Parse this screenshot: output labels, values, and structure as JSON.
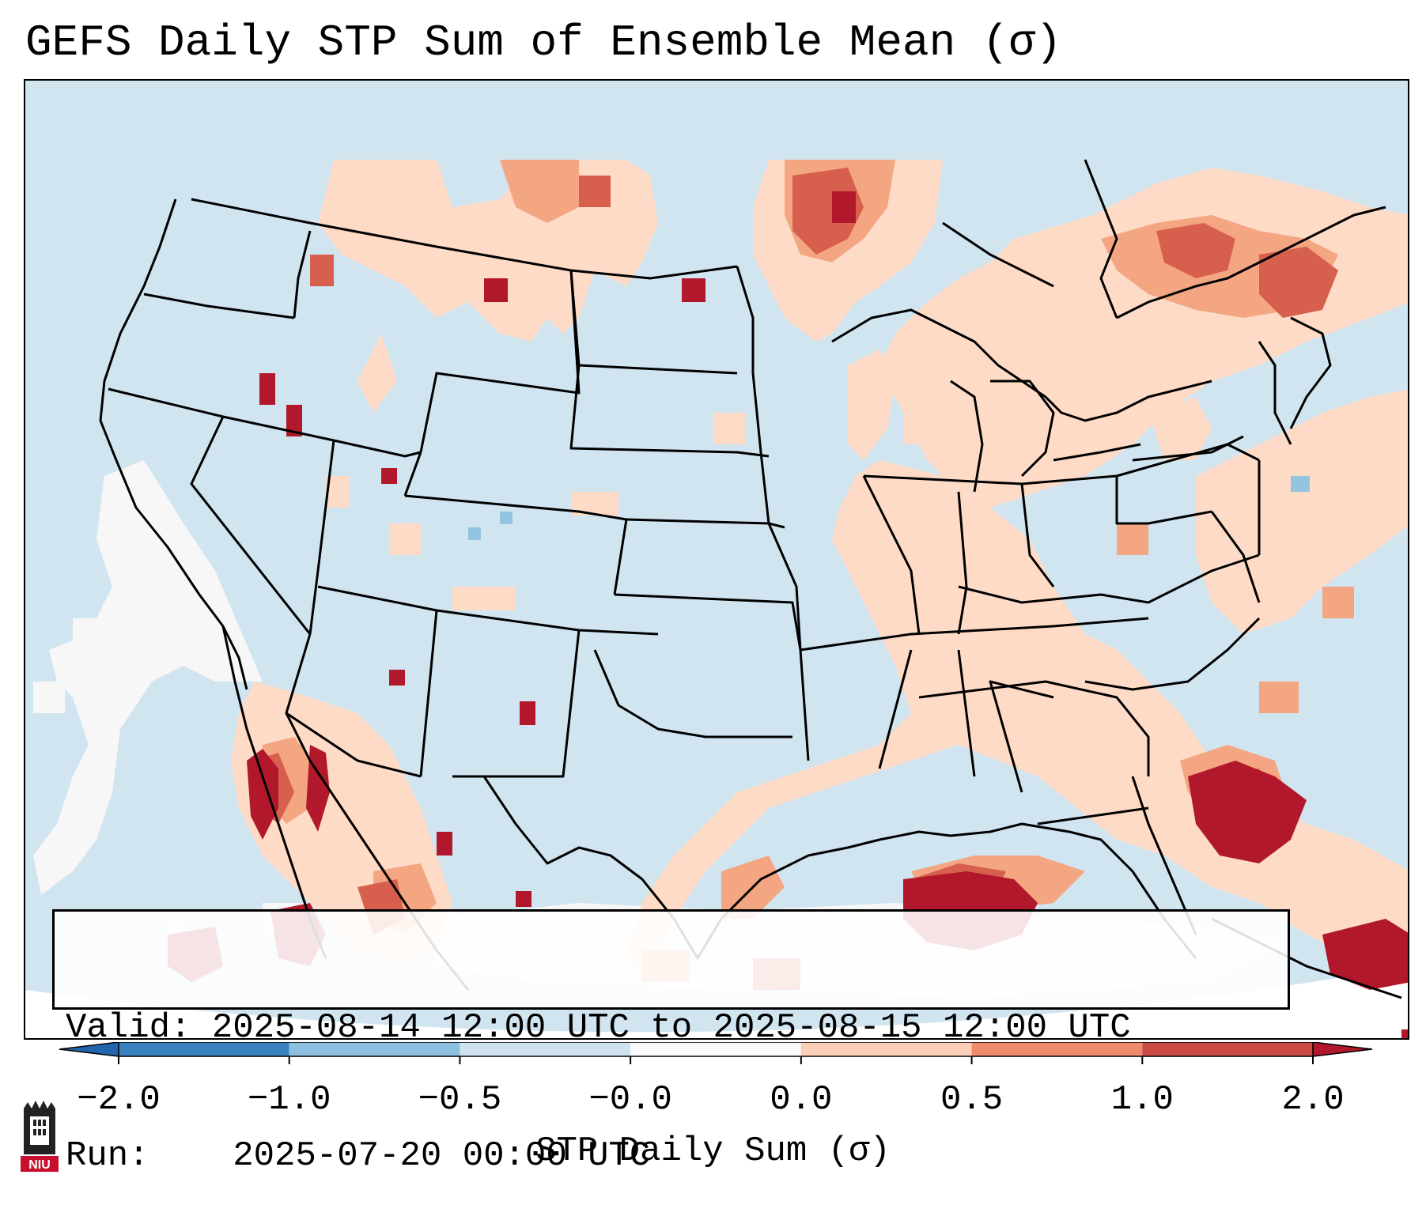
{
  "title": "GEFS Daily STP Sum of Ensemble Mean (σ)",
  "info": {
    "valid_label": "Valid:",
    "valid_value": "2025-08-14 12:00 UTC to 2025-08-15 12:00 UTC",
    "run_label": "Run:",
    "run_value": "2025-07-20 00:00 UTC"
  },
  "colorbar": {
    "label": "STP Daily Sum (σ)",
    "ticks": [
      "−2.0",
      "−1.0",
      "−0.5",
      "−0.0",
      "0.0",
      "0.5",
      "1.0",
      "2.0"
    ],
    "colors": [
      "#3a82c0",
      "#8cc0de",
      "#cfe3ef",
      "#fafafa",
      "#fcd0b8",
      "#ef8a6a",
      "#cc4a46",
      "#b2182b"
    ],
    "extend_low_color": "#2166ac",
    "extend_high_color": "#b2182b"
  },
  "map_colors": {
    "ocean_background": "#d1e5f0",
    "neutral": "#f7f7f7",
    "low_positive": "#fddbc7",
    "mid_positive": "#f4a582",
    "high_positive": "#d6604d",
    "very_high": "#b2182b",
    "negative": "#92c5de",
    "boundaries": "#000000"
  },
  "logo": {
    "text": "NIU"
  }
}
